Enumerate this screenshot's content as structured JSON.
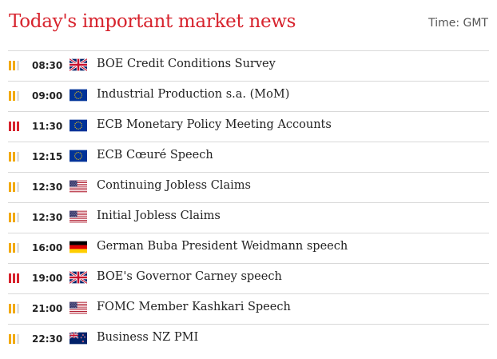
{
  "header": {
    "title": "Today's important market news",
    "timezone": "Time: GMT"
  },
  "colors": {
    "high": "#d7232d",
    "medium": "#f2a900",
    "inactive": "#e0e0e0"
  },
  "events": [
    {
      "time": "08:30",
      "country": "gb",
      "flag_icon": "uk-flag-icon",
      "title": "BOE Credit Conditions Survey",
      "importance": 2
    },
    {
      "time": "09:00",
      "country": "eu",
      "flag_icon": "eu-flag-icon",
      "title": "Industrial Production s.a. (MoM)",
      "importance": 2
    },
    {
      "time": "11:30",
      "country": "eu",
      "flag_icon": "eu-flag-icon",
      "title": "ECB Monetary Policy Meeting Accounts",
      "importance": 3
    },
    {
      "time": "12:15",
      "country": "eu",
      "flag_icon": "eu-flag-icon",
      "title": "ECB Cœuré Speech",
      "importance": 2
    },
    {
      "time": "12:30",
      "country": "us",
      "flag_icon": "us-flag-icon",
      "title": "Continuing Jobless Claims",
      "importance": 2
    },
    {
      "time": "12:30",
      "country": "us",
      "flag_icon": "us-flag-icon",
      "title": "Initial Jobless Claims",
      "importance": 2
    },
    {
      "time": "16:00",
      "country": "de",
      "flag_icon": "germany-flag-icon",
      "title": "German Buba President Weidmann speech",
      "importance": 2
    },
    {
      "time": "19:00",
      "country": "gb",
      "flag_icon": "uk-flag-icon",
      "title": "BOE's Governor Carney speech",
      "importance": 3
    },
    {
      "time": "21:00",
      "country": "us",
      "flag_icon": "us-flag-icon",
      "title": "FOMC Member Kashkari Speech",
      "importance": 2
    },
    {
      "time": "22:30",
      "country": "nz",
      "flag_icon": "new-zealand-flag-icon",
      "title": "Business NZ PMI",
      "importance": 2
    }
  ]
}
